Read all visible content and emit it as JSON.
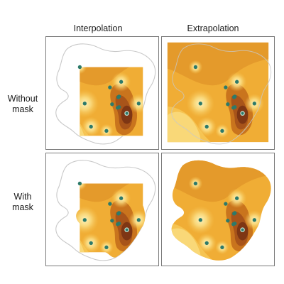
{
  "headers": {
    "interpolation": "Interpolation",
    "extrapolation": "Extrapolation"
  },
  "rows": {
    "without_mask": [
      "Without",
      "mask"
    ],
    "with_mask": [
      "With",
      "mask"
    ]
  },
  "colors": {
    "base": "#f0ad35",
    "light": "#f6c452",
    "highlight": "#fbe189",
    "hot_core": "#fdf5c2",
    "mid": "#e49a2b",
    "dark": "#c9741d",
    "darker": "#a8541a",
    "darkest": "#7e3614",
    "outline": "#c8c8c8",
    "point": "#2d7a6a",
    "point_ring": "#c8e8dc",
    "panel_border": "#7a7a7a"
  }
}
